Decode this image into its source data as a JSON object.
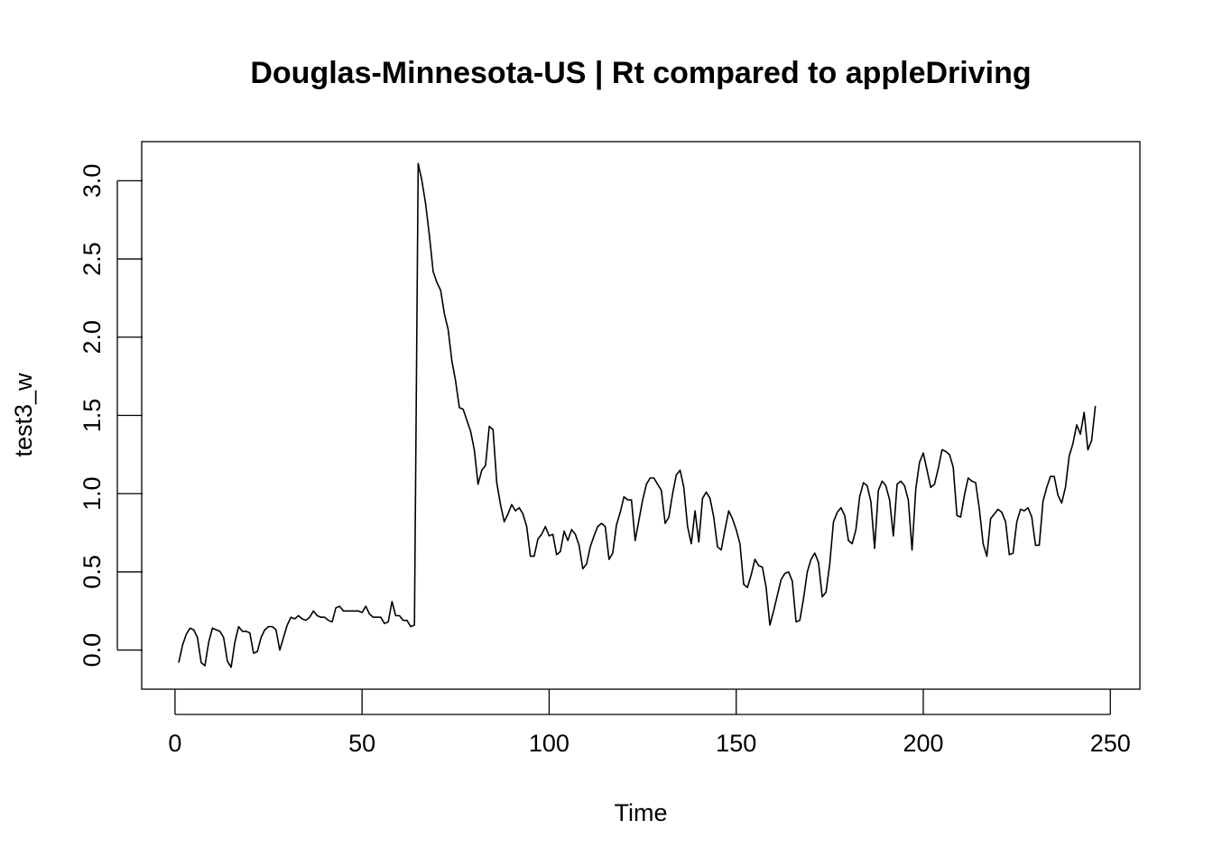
{
  "chart_data": {
    "type": "line",
    "title": "Douglas-Minnesota-US | Rt compared to appleDriving",
    "xlabel": "Time",
    "ylabel": "test3_w",
    "xlim": [
      -8.9,
      257.9
    ],
    "ylim": [
      -0.25,
      3.25
    ],
    "xticks": [
      0,
      50,
      100,
      150,
      200,
      250
    ],
    "yticks": [
      0.0,
      0.5,
      1.0,
      1.5,
      2.0,
      2.5,
      3.0
    ],
    "xtick_labels": [
      "0",
      "50",
      "100",
      "150",
      "200",
      "250"
    ],
    "ytick_labels": [
      "0.0",
      "0.5",
      "1.0",
      "1.5",
      "2.0",
      "2.5",
      "3.0"
    ],
    "grid": false,
    "legend": "none",
    "line_color": "#000000",
    "x_start": 1,
    "series": [
      {
        "values": [
          -0.08,
          0.03,
          0.1,
          0.14,
          0.13,
          0.08,
          -0.08,
          -0.1,
          0.05,
          0.14,
          0.13,
          0.12,
          0.08,
          -0.07,
          -0.11,
          0.05,
          0.15,
          0.12,
          0.12,
          0.11,
          -0.02,
          -0.01,
          0.08,
          0.13,
          0.15,
          0.15,
          0.13,
          0.0,
          0.08,
          0.16,
          0.21,
          0.2,
          0.22,
          0.2,
          0.19,
          0.21,
          0.25,
          0.22,
          0.21,
          0.21,
          0.19,
          0.18,
          0.27,
          0.28,
          0.25,
          0.25,
          0.25,
          0.25,
          0.25,
          0.24,
          0.28,
          0.23,
          0.21,
          0.21,
          0.21,
          0.17,
          0.18,
          0.31,
          0.22,
          0.22,
          0.19,
          0.19,
          0.15,
          0.16,
          3.11,
          3.0,
          2.85,
          2.65,
          2.42,
          2.35,
          2.3,
          2.15,
          2.05,
          1.85,
          1.72,
          1.55,
          1.54,
          1.47,
          1.4,
          1.28,
          1.06,
          1.15,
          1.18,
          1.43,
          1.41,
          1.07,
          0.93,
          0.82,
          0.87,
          0.93,
          0.89,
          0.91,
          0.87,
          0.79,
          0.6,
          0.6,
          0.71,
          0.74,
          0.79,
          0.73,
          0.74,
          0.61,
          0.63,
          0.76,
          0.7,
          0.77,
          0.74,
          0.67,
          0.52,
          0.55,
          0.66,
          0.73,
          0.79,
          0.81,
          0.79,
          0.58,
          0.62,
          0.8,
          0.88,
          0.98,
          0.96,
          0.96,
          0.7,
          0.83,
          0.96,
          1.06,
          1.1,
          1.1,
          1.06,
          1.02,
          0.81,
          0.85,
          1.0,
          1.12,
          1.15,
          1.04,
          0.79,
          0.68,
          0.89,
          0.69,
          0.97,
          1.01,
          0.97,
          0.85,
          0.66,
          0.64,
          0.77,
          0.89,
          0.84,
          0.77,
          0.68,
          0.42,
          0.4,
          0.48,
          0.58,
          0.54,
          0.53,
          0.4,
          0.16,
          0.25,
          0.35,
          0.45,
          0.49,
          0.5,
          0.44,
          0.18,
          0.19,
          0.33,
          0.5,
          0.58,
          0.62,
          0.56,
          0.34,
          0.37,
          0.55,
          0.82,
          0.88,
          0.91,
          0.86,
          0.7,
          0.68,
          0.77,
          0.98,
          1.07,
          1.05,
          0.95,
          0.65,
          1.02,
          1.08,
          1.05,
          0.96,
          0.73,
          1.06,
          1.08,
          1.05,
          0.96,
          0.64,
          1.03,
          1.2,
          1.26,
          1.15,
          1.04,
          1.06,
          1.16,
          1.28,
          1.27,
          1.25,
          1.17,
          0.86,
          0.85,
          0.99,
          1.1,
          1.08,
          1.07,
          0.9,
          0.68,
          0.6,
          0.84,
          0.87,
          0.9,
          0.88,
          0.82,
          0.61,
          0.62,
          0.82,
          0.9,
          0.89,
          0.91,
          0.85,
          0.67,
          0.67,
          0.95,
          1.04,
          1.11,
          1.11,
          0.99,
          0.94,
          1.04,
          1.24,
          1.32,
          1.44,
          1.38,
          1.52,
          1.28,
          1.34,
          1.56
        ]
      }
    ]
  }
}
